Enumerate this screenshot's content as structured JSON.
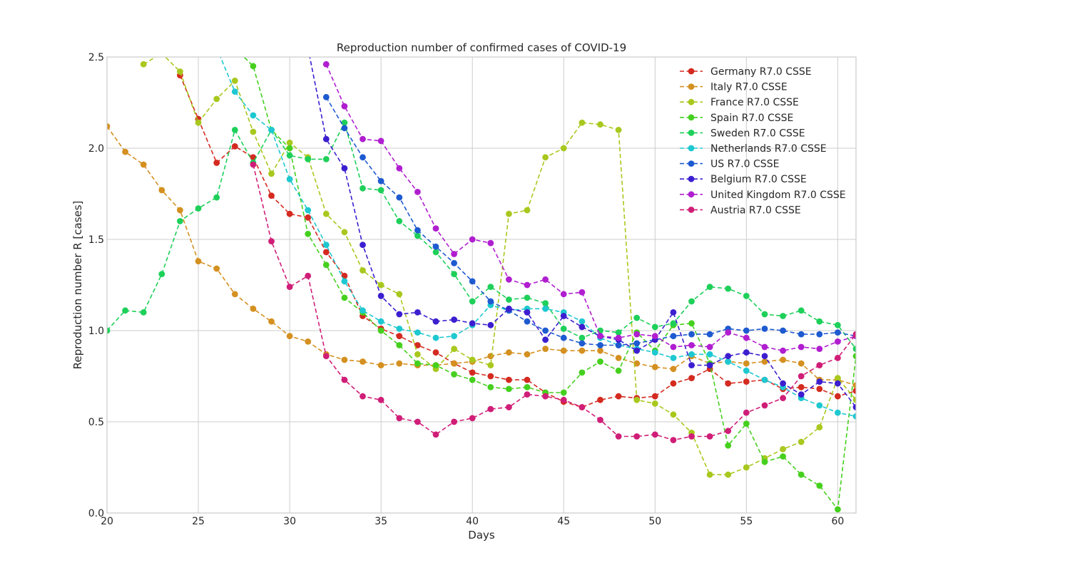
{
  "chart_data": {
    "type": "line",
    "title": "Reproduction number of confirmed cases of COVID-19",
    "xlabel": "Days",
    "ylabel": "Reproduction number R [cases]",
    "xlim": [
      20,
      61
    ],
    "ylim": [
      0,
      2.5
    ],
    "x_ticks": [
      "20",
      "25",
      "30",
      "35",
      "40",
      "45",
      "50",
      "55",
      "60"
    ],
    "y_ticks": [
      "0.0",
      "0.5",
      "1.0",
      "1.5",
      "2.0",
      "2.5"
    ],
    "grid": true,
    "legend_position": "top-right",
    "line_style": "dashed",
    "marker": "circle",
    "series": [
      {
        "name": "Germany R7.0 CSSE",
        "color": "#d42a20",
        "x_start": 24,
        "values": [
          2.4,
          2.16,
          1.92,
          2.01,
          1.95,
          1.74,
          1.64,
          1.62,
          1.43,
          1.3,
          1.08,
          1.01,
          0.97,
          0.92,
          0.88,
          0.82,
          0.77,
          0.75,
          0.73,
          0.73,
          0.66,
          0.61,
          0.58,
          0.62,
          0.64,
          0.63,
          0.64,
          0.71,
          0.74,
          0.79,
          0.71,
          0.72,
          0.73,
          0.68,
          0.69,
          0.68,
          0.64,
          0.67
        ]
      },
      {
        "name": "Italy R7.0 CSSE",
        "color": "#d49020",
        "x_start": 20,
        "values": [
          2.12,
          1.98,
          1.91,
          1.77,
          1.66,
          1.38,
          1.34,
          1.2,
          1.12,
          1.05,
          0.97,
          0.94,
          0.87,
          0.84,
          0.83,
          0.81,
          0.82,
          0.81,
          0.81,
          0.82,
          0.83,
          0.86,
          0.88,
          0.87,
          0.9,
          0.89,
          0.89,
          0.89,
          0.85,
          0.82,
          0.8,
          0.79,
          0.86,
          0.82,
          0.83,
          0.82,
          0.83,
          0.84,
          0.82,
          0.73,
          0.73,
          0.7
        ]
      },
      {
        "name": "France R7.0 CSSE",
        "color": "#a8c81e",
        "x_start": 22,
        "values": [
          2.46,
          2.52,
          2.42,
          2.14,
          2.27,
          2.37,
          2.09,
          1.86,
          2.03,
          1.95,
          1.64,
          1.54,
          1.33,
          1.25,
          1.2,
          0.87,
          0.79,
          0.9,
          0.84,
          0.81,
          1.64,
          1.66,
          1.95,
          2.0,
          2.14,
          2.13,
          2.1,
          0.62,
          0.6,
          0.54,
          0.44,
          0.21,
          0.21,
          0.25,
          0.3,
          0.35,
          0.39,
          0.47,
          0.74,
          0.62
        ]
      },
      {
        "name": "Spain R7.0 CSSE",
        "color": "#45d01e",
        "x_start": 27,
        "values": [
          2.55,
          2.45,
          2.1,
          2.0,
          1.53,
          1.36,
          1.18,
          1.1,
          1.0,
          0.92,
          0.82,
          0.81,
          0.76,
          0.73,
          0.69,
          0.68,
          0.69,
          0.66,
          0.66,
          0.77,
          0.83,
          0.78,
          0.99,
          0.89,
          1.03,
          1.04,
          0.82,
          0.37,
          0.49,
          0.28,
          0.31,
          0.21,
          0.15,
          0.02,
          0.86
        ]
      },
      {
        "name": "Sweden R7.0 CSSE",
        "color": "#1ed05a",
        "x_start": 20,
        "values": [
          1.0,
          1.11,
          1.1,
          1.31,
          1.6,
          1.67,
          1.73,
          2.1,
          1.92,
          2.1,
          1.96,
          1.94,
          1.94,
          2.14,
          1.78,
          1.77,
          1.6,
          1.52,
          1.43,
          1.31,
          1.16,
          1.24,
          1.17,
          1.18,
          1.15,
          1.01,
          0.96,
          1.0,
          0.99,
          1.07,
          1.02,
          1.04,
          1.16,
          1.24,
          1.23,
          1.19,
          1.09,
          1.08,
          1.11,
          1.05,
          1.03,
          0.9
        ]
      },
      {
        "name": "Netherlands R7.0 CSSE",
        "color": "#1ec8d0",
        "x_start": 26,
        "values": [
          2.55,
          2.31,
          2.18,
          2.1,
          1.83,
          1.66,
          1.47,
          1.27,
          1.11,
          1.05,
          1.01,
          0.99,
          0.96,
          0.97,
          1.03,
          1.14,
          1.11,
          1.12,
          1.12,
          1.1,
          1.05,
          0.96,
          0.92,
          0.9,
          0.88,
          0.85,
          0.87,
          0.87,
          0.83,
          0.78,
          0.73,
          0.69,
          0.63,
          0.59,
          0.55,
          0.53
        ]
      },
      {
        "name": "US R7.0 CSSE",
        "color": "#1e5ad0",
        "x_start": 32,
        "values": [
          2.28,
          2.11,
          1.95,
          1.82,
          1.73,
          1.55,
          1.46,
          1.37,
          1.27,
          1.16,
          1.11,
          1.05,
          1.0,
          0.96,
          0.93,
          0.92,
          0.92,
          0.93,
          0.95,
          0.97,
          0.98,
          0.98,
          1.01,
          1.0,
          1.01,
          1.0,
          0.98,
          0.98,
          0.99,
          0.97
        ]
      },
      {
        "name": "Belgium R7.0 CSSE",
        "color": "#3c1ed0",
        "x_start": 31,
        "values": [
          2.55,
          2.05,
          1.89,
          1.47,
          1.19,
          1.09,
          1.1,
          1.05,
          1.06,
          1.04,
          1.03,
          1.12,
          1.1,
          0.95,
          1.08,
          1.02,
          0.97,
          0.95,
          0.89,
          0.95,
          1.1,
          0.81,
          0.81,
          0.86,
          0.88,
          0.86,
          0.71,
          0.65,
          0.72,
          0.71,
          0.58
        ]
      },
      {
        "name": "United Kingdom R7.0 CSSE",
        "color": "#b01ed0",
        "x_start": 32,
        "values": [
          2.46,
          2.23,
          2.05,
          2.04,
          1.89,
          1.76,
          1.56,
          1.42,
          1.5,
          1.48,
          1.28,
          1.25,
          1.28,
          1.2,
          1.21,
          0.97,
          0.96,
          0.98,
          0.97,
          0.91,
          0.92,
          0.91,
          0.99,
          0.96,
          0.91,
          0.89,
          0.91,
          0.9,
          0.94,
          0.97
        ]
      },
      {
        "name": "Austria R7.0 CSSE",
        "color": "#d01e78",
        "x_start": 28,
        "values": [
          1.91,
          1.49,
          1.24,
          1.3,
          0.86,
          0.73,
          0.64,
          0.62,
          0.52,
          0.5,
          0.43,
          0.5,
          0.52,
          0.57,
          0.58,
          0.65,
          0.64,
          0.62,
          0.58,
          0.51,
          0.42,
          0.42,
          0.43,
          0.4,
          0.42,
          0.42,
          0.45,
          0.55,
          0.59,
          0.63,
          0.75,
          0.81,
          0.85,
          0.98
        ]
      }
    ]
  }
}
